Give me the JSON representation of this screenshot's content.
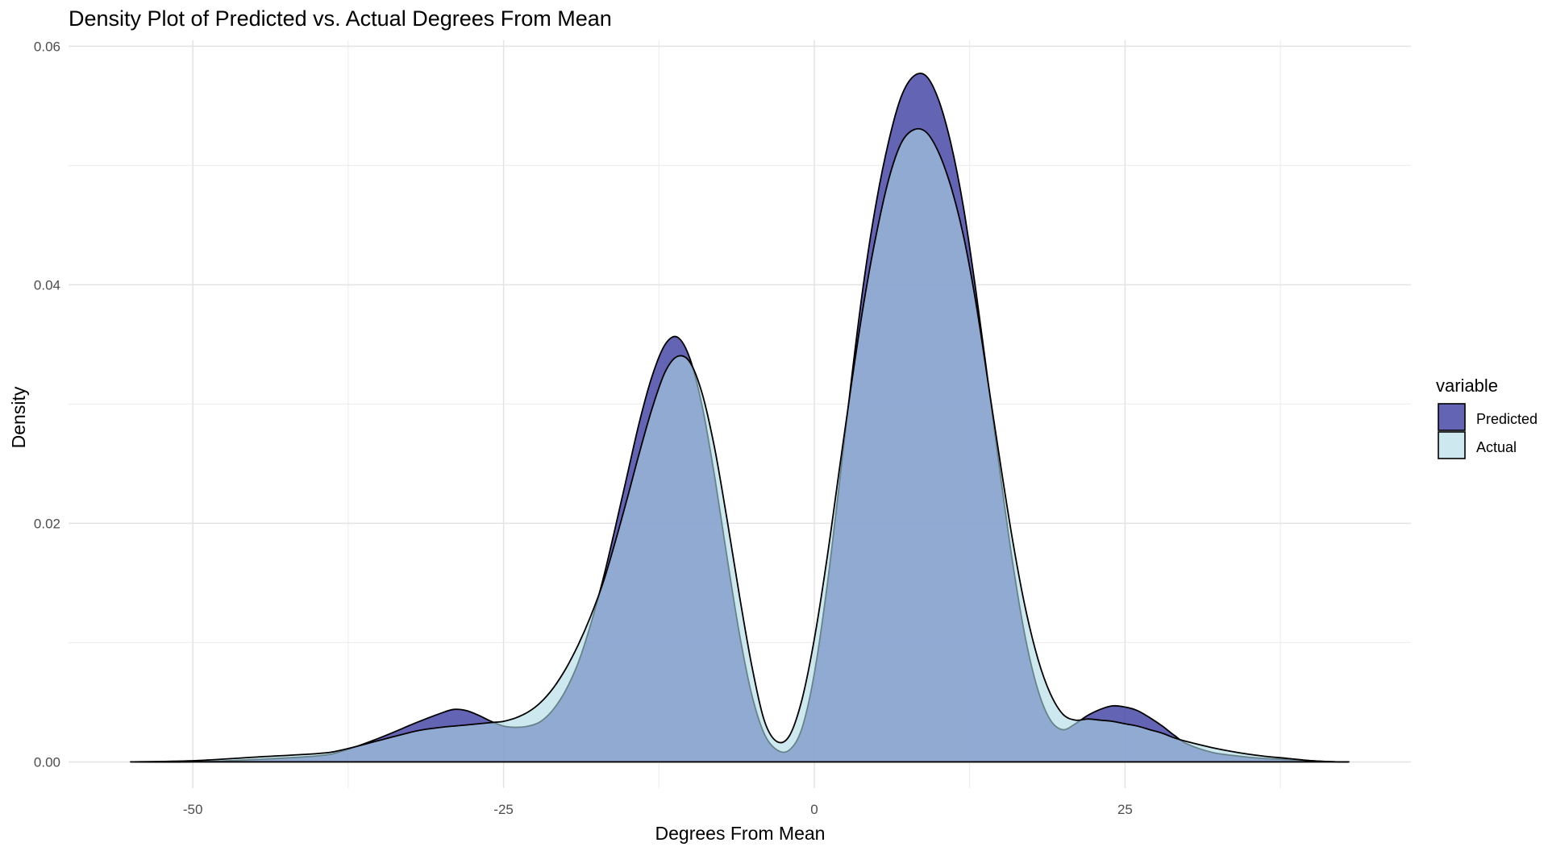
{
  "chart_data": {
    "type": "area",
    "title": "Density Plot of Predicted vs. Actual Degrees From Mean",
    "xlabel": "Degrees From Mean",
    "ylabel": "Density",
    "xlim": [
      -60,
      48
    ],
    "ylim": [
      -0.0022,
      0.0605
    ],
    "x_ticks": [
      -50,
      -25,
      0,
      25
    ],
    "x_tick_labels": [
      "-50",
      "-25",
      "0",
      "25"
    ],
    "y_ticks": [
      0,
      0.02,
      0.04,
      0.06
    ],
    "y_tick_labels": [
      "0.00",
      "0.02",
      "0.04",
      "0.06"
    ],
    "grid": true,
    "legend": {
      "title": "variable",
      "position": "right",
      "entries": [
        "Predicted",
        "Actual"
      ]
    },
    "series": [
      {
        "name": "Predicted",
        "color": "#3d3da3",
        "fill_opacity": 0.8,
        "x": [
          -55,
          -50,
          -45,
          -40,
          -38,
          -35,
          -32,
          -30,
          -29,
          -28,
          -27,
          -26,
          -25,
          -24,
          -23,
          -22,
          -21,
          -20,
          -19,
          -18,
          -17,
          -16,
          -15,
          -14,
          -13,
          -12,
          -11,
          -10,
          -9,
          -8,
          -7,
          -6,
          -5,
          -4,
          -3,
          -2,
          -1,
          0,
          1,
          2,
          3,
          4,
          5,
          6,
          7,
          8,
          9,
          10,
          11,
          12,
          13,
          14,
          15,
          16,
          17,
          18,
          19,
          20,
          21,
          22,
          23,
          24,
          25,
          26,
          27,
          28,
          29,
          30,
          32,
          34,
          36,
          38,
          40,
          42,
          43
        ],
        "y": [
          0.0,
          0.0,
          0.0002,
          0.0005,
          0.0009,
          0.002,
          0.0033,
          0.0041,
          0.0044,
          0.0043,
          0.0039,
          0.0034,
          0.003,
          0.0029,
          0.003,
          0.0034,
          0.0044,
          0.006,
          0.0083,
          0.0115,
          0.0153,
          0.0197,
          0.0243,
          0.0288,
          0.0325,
          0.035,
          0.0356,
          0.0338,
          0.0297,
          0.0238,
          0.017,
          0.0106,
          0.0055,
          0.0023,
          0.001,
          0.001,
          0.0028,
          0.0074,
          0.0145,
          0.0232,
          0.0322,
          0.0404,
          0.047,
          0.0521,
          0.0558,
          0.0575,
          0.0575,
          0.0555,
          0.0518,
          0.0465,
          0.0395,
          0.0317,
          0.0238,
          0.0164,
          0.0103,
          0.006,
          0.0035,
          0.0027,
          0.0032,
          0.0039,
          0.0044,
          0.0047,
          0.0046,
          0.0043,
          0.0037,
          0.003,
          0.0022,
          0.0015,
          0.0008,
          0.0005,
          0.0003,
          0.0002,
          0.0001,
          0.0,
          0.0
        ]
      },
      {
        "name": "Actual",
        "color": "#add8e6",
        "fill_opacity": 0.6,
        "x": [
          -55,
          -50,
          -45,
          -40,
          -38,
          -35,
          -32,
          -30,
          -29,
          -28,
          -27,
          -26,
          -25,
          -24,
          -23,
          -22,
          -21,
          -20,
          -19,
          -18,
          -17,
          -16,
          -15,
          -14,
          -13,
          -12,
          -11,
          -10,
          -9,
          -8,
          -7,
          -6,
          -5,
          -4,
          -3,
          -2,
          -1,
          0,
          1,
          2,
          3,
          4,
          5,
          6,
          7,
          8,
          9,
          10,
          11,
          12,
          13,
          14,
          15,
          16,
          17,
          18,
          19,
          20,
          21,
          22,
          23,
          24,
          25,
          26,
          27,
          28,
          29,
          30,
          32,
          34,
          36,
          38,
          40,
          42,
          43
        ],
        "y": [
          0.0,
          0.0001,
          0.0004,
          0.0007,
          0.001,
          0.0018,
          0.0026,
          0.0029,
          0.003,
          0.0031,
          0.0032,
          0.0033,
          0.0034,
          0.0037,
          0.0042,
          0.005,
          0.0062,
          0.0078,
          0.0098,
          0.0122,
          0.015,
          0.0185,
          0.0223,
          0.0262,
          0.0298,
          0.0327,
          0.034,
          0.0335,
          0.0308,
          0.0262,
          0.0202,
          0.0138,
          0.0079,
          0.0034,
          0.0017,
          0.0022,
          0.0052,
          0.0103,
          0.0169,
          0.0244,
          0.0318,
          0.0386,
          0.0443,
          0.0489,
          0.0519,
          0.053,
          0.0528,
          0.0511,
          0.0482,
          0.0441,
          0.0385,
          0.0317,
          0.0248,
          0.0183,
          0.0128,
          0.0086,
          0.0057,
          0.004,
          0.0035,
          0.0036,
          0.0035,
          0.0034,
          0.0032,
          0.003,
          0.0027,
          0.0024,
          0.002,
          0.0017,
          0.0012,
          0.0008,
          0.0005,
          0.0003,
          0.0001,
          0.0,
          0.0
        ]
      }
    ]
  }
}
